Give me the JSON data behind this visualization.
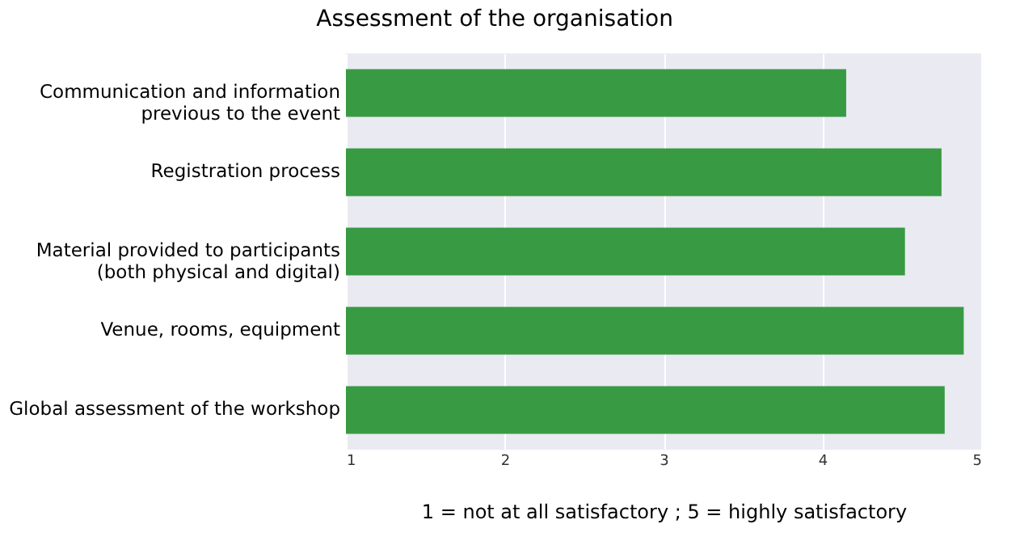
{
  "chart_data": {
    "type": "bar",
    "orientation": "horizontal",
    "title": "Assessment of the organisation",
    "xlabel": "1 = not at all satisfactory ; 5 = highly satisfactory",
    "categories": [
      "Communication and information\nprevious to the event",
      "Registration process",
      "Material provided to participants\n(both physical and digital)",
      "Venue, rooms, equipment",
      "Global assessment of the workshop"
    ],
    "values": [
      4.15,
      4.75,
      4.52,
      4.89,
      4.77
    ],
    "color": "#389a43",
    "xlim": [
      1,
      5
    ],
    "xticks": [
      1,
      2,
      3,
      4,
      5
    ],
    "grid": "x"
  }
}
